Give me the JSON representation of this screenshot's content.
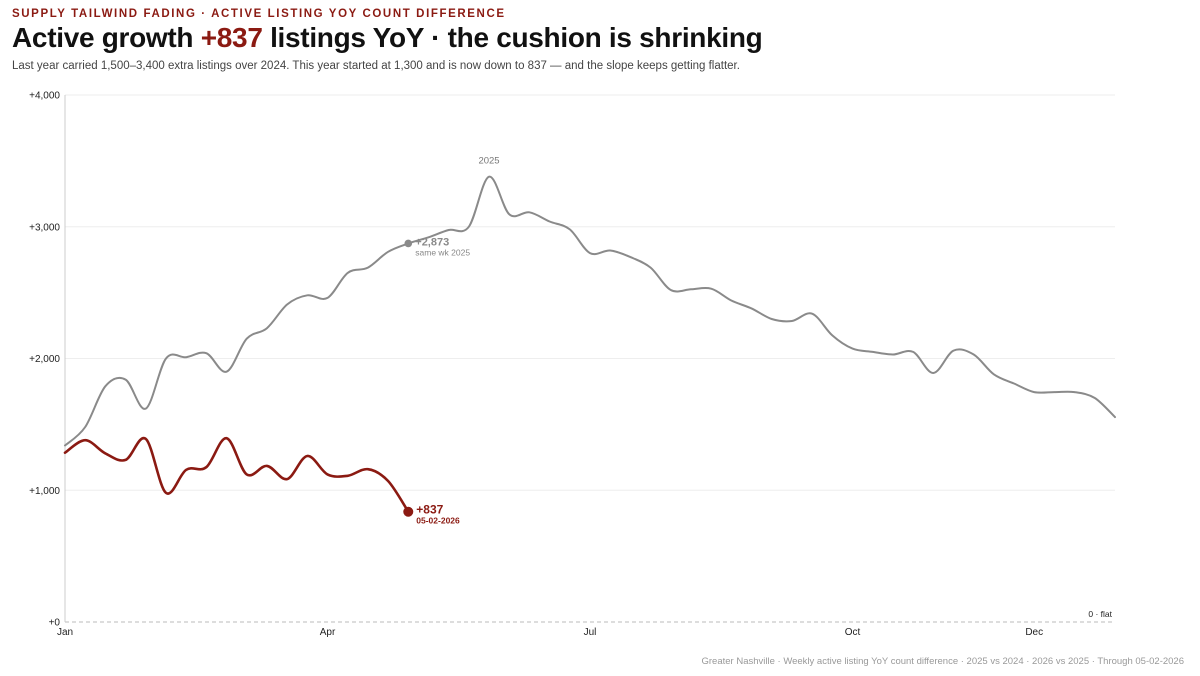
{
  "header": {
    "kicker": "SUPPLY TAILWIND FADING · ACTIVE LISTING YOY COUNT DIFFERENCE",
    "title_pre": "Active growth ",
    "title_highlight": "+837",
    "title_post": " listings YoY · the cushion is shrinking",
    "subtitle": "Last year carried 1,500–3,400 extra listings over 2024. This year started at 1,300 and is now down to 837 — and the slope keeps getting flatter."
  },
  "footer": "Greater Nashville · Weekly active listing YoY count difference · 2025 vs 2024 · 2026 vs 2025 · Through 05-02-2026",
  "colors": {
    "current": "#8b1a12",
    "prior": "#8a8a8a",
    "grid": "#eeeeee",
    "baseline": "#bbbbbb"
  },
  "chart_data": {
    "type": "line",
    "xlabel": "",
    "ylabel": "",
    "x_unit": "week of year",
    "xlim": [
      1,
      53
    ],
    "ylim": [
      0,
      4000
    ],
    "y_ticks": [
      0,
      1000,
      2000,
      3000,
      4000
    ],
    "y_tick_labels": [
      "+0",
      "+1,000",
      "+2,000",
      "+3,000",
      "+4,000"
    ],
    "x_ticks": [
      1,
      14,
      27,
      40,
      49
    ],
    "x_tick_labels": [
      "Jan",
      "Apr",
      "Jul",
      "Oct",
      "Dec"
    ],
    "grid": true,
    "series": [
      {
        "name": "2025",
        "x": [
          1,
          2,
          3,
          4,
          5,
          6,
          7,
          8,
          9,
          10,
          11,
          12,
          13,
          14,
          15,
          16,
          17,
          18,
          19,
          20,
          21,
          22,
          23,
          24,
          25,
          26,
          27,
          28,
          29,
          30,
          31,
          32,
          33,
          34,
          35,
          36,
          37,
          38,
          39,
          40,
          41,
          42,
          43,
          44,
          45,
          46,
          47,
          48,
          49,
          50,
          51,
          52,
          53
        ],
        "values": [
          1340,
          1480,
          1790,
          1840,
          1620,
          2000,
          2010,
          2040,
          1900,
          2150,
          2230,
          2410,
          2480,
          2460,
          2650,
          2690,
          2810,
          2873,
          2920,
          2975,
          3000,
          3380,
          3095,
          3110,
          3040,
          2980,
          2800,
          2820,
          2770,
          2690,
          2520,
          2525,
          2530,
          2440,
          2380,
          2300,
          2285,
          2340,
          2175,
          2075,
          2050,
          2030,
          2050,
          1890,
          2060,
          2030,
          1880,
          1810,
          1745,
          1745,
          1745,
          1700,
          1555
        ]
      },
      {
        "name": "2026",
        "x": [
          1,
          2,
          3,
          4,
          5,
          6,
          7,
          8,
          9,
          10,
          11,
          12,
          13,
          14,
          15,
          16,
          17,
          18
        ],
        "values": [
          1285,
          1380,
          1280,
          1230,
          1390,
          980,
          1155,
          1175,
          1395,
          1120,
          1185,
          1085,
          1260,
          1120,
          1110,
          1160,
          1070,
          837
        ]
      }
    ],
    "annotations": [
      {
        "label": "2025",
        "x": 22,
        "y": 3380
      },
      {
        "label": "+2,873",
        "sublabel": "same wk 2025",
        "x": 18,
        "y": 2873
      },
      {
        "label": "+837",
        "sublabel": "05-02-2026",
        "x": 18,
        "y": 837
      },
      {
        "label": "0 · flat",
        "x": 53,
        "y": 0
      }
    ]
  }
}
